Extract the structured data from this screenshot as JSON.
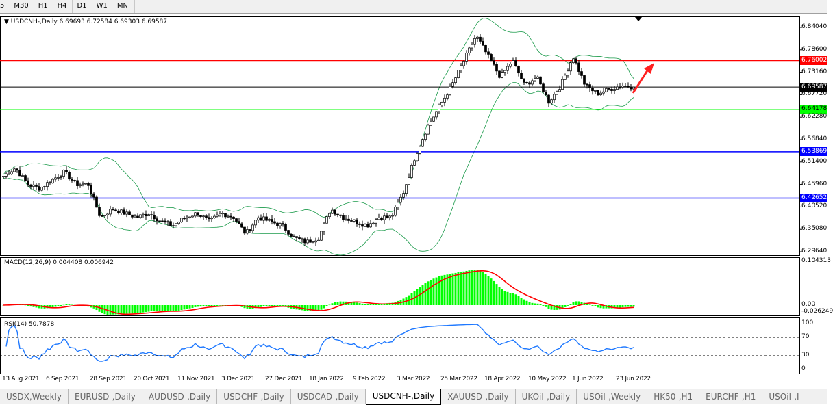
{
  "toolbar": {
    "timeframes": [
      "5",
      "M30",
      "H1",
      "H4",
      "D1",
      "W1",
      "MN"
    ]
  },
  "chart": {
    "symbol_info": "USDCNH-,Daily  6.69693 6.72584 6.69303 6.69587",
    "price_axis": [
      "6.84040",
      "6.78600",
      "6.73160",
      "6.67720",
      "6.62280",
      "6.56840",
      "6.51400",
      "6.45960",
      "6.40520",
      "6.35080",
      "6.29640"
    ],
    "horizontal_lines": [
      {
        "price": 6.76002,
        "label": "6.76002",
        "color": "#ff0000"
      },
      {
        "price": 6.69587,
        "label": "6.69587",
        "color": "#000000"
      },
      {
        "price": 6.64178,
        "label": "6.64178",
        "color": "#00ff00"
      },
      {
        "price": 6.53869,
        "label": "6.53869",
        "color": "#0000ff"
      },
      {
        "price": 6.42652,
        "label": "6.42652",
        "color": "#0000ff"
      }
    ],
    "close_anchors": [
      6.48,
      6.5,
      6.46,
      6.45,
      6.47,
      6.49,
      6.46,
      6.46,
      6.38,
      6.4,
      6.39,
      6.38,
      6.39,
      6.37,
      6.36,
      6.38,
      6.39,
      6.37,
      6.39,
      6.38,
      6.34,
      6.38,
      6.37,
      6.36,
      6.33,
      6.32,
      6.33,
      6.4,
      6.38,
      6.37,
      6.36,
      6.38,
      6.38,
      6.44,
      6.53,
      6.6,
      6.65,
      6.7,
      6.76,
      6.82,
      6.77,
      6.72,
      6.76,
      6.7,
      6.72,
      6.66,
      6.7,
      6.77,
      6.7,
      6.68,
      6.69,
      6.7,
      6.69587
    ],
    "candle_colors": {
      "up": "#000000",
      "down": "#000000",
      "band": "#1a9a4a",
      "arrow": "#ff2020"
    },
    "macd": {
      "label": "MACD(12,26,9) 0.004408 0.006942",
      "axis": [
        "0.104313",
        "0.00",
        "-0.026249"
      ],
      "hist_color": "#00ff00",
      "signal_color": "#ff0000"
    },
    "rsi": {
      "label": "RSI(14) 50.7878",
      "axis": [
        "100",
        "70",
        "30",
        "0"
      ],
      "color": "#1e78ff"
    },
    "dates": [
      "13 Aug 2021",
      "6 Sep 2021",
      "28 Sep 2021",
      "20 Oct 2021",
      "11 Nov 2021",
      "3 Dec 2021",
      "27 Dec 2021",
      "18 Jan 2022",
      "9 Feb 2022",
      "3 Mar 2022",
      "25 Mar 2022",
      "18 Apr 2022",
      "10 May 2022",
      "1 Jun 2022",
      "23 Jun 2022"
    ]
  },
  "tabs": [
    "USDX,Weekly",
    "EURUSD-,Daily",
    "AUDUSD-,Daily",
    "USDCHF-,Daily",
    "USDCAD-,Daily",
    "USDCNH-,Daily",
    "XAUUSD-,Daily",
    "UKOil-,Daily",
    "USOil-,Weekly",
    "HK50-,H1",
    "EURCHF-,H1",
    "USOil-,I"
  ],
  "active_tab": "USDCNH-,Daily"
}
